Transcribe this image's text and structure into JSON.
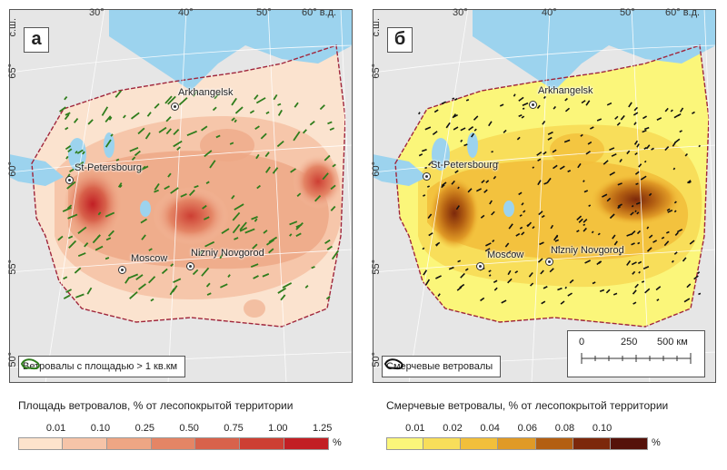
{
  "panels": [
    {
      "letter": "а",
      "lon_labels": [
        "30°",
        "40°",
        "50°",
        "60° в.д."
      ],
      "lat_labels": [
        "с.ш.",
        "65°",
        "60°",
        "55°",
        "50°"
      ],
      "cities": [
        "Arkhangelsk",
        "St-Petersbourg",
        "Moscow",
        "Nizniy Novgorod"
      ],
      "legend_text": "Ветровалы с площадью > 1 кв.км",
      "colors": {
        "base": "#fbe3cf",
        "water": "#9cd3ee",
        "marks": "#2f7d1c",
        "outside": "#e6e6e6"
      }
    },
    {
      "letter": "б",
      "lon_labels": [
        "30°",
        "40°",
        "50°",
        "60° в.д."
      ],
      "lat_labels": [
        "с.ш.",
        "65°",
        "60°",
        "55°",
        "50°"
      ],
      "cities": [
        "Arkhangelsk",
        "St-Petersbourg",
        "Moscow",
        "Nizniy Novgorod"
      ],
      "legend_text": "Смерчевые ветровалы",
      "scalebar": {
        "labels": [
          "0",
          "250",
          "500 км"
        ]
      },
      "colors": {
        "base": "#fbf67a",
        "water": "#9cd3ee",
        "marks": "#111111",
        "outside": "#e6e6e6"
      }
    }
  ],
  "legend_a": {
    "title": "Площадь ветровалов, % от лесопокрытой территории",
    "ticks": [
      "0.01",
      "0.10",
      "0.25",
      "0.50",
      "0.75",
      "1.00",
      "1.25"
    ],
    "unit": "%",
    "colors": [
      "#fde3cc",
      "#f6c4a8",
      "#eea684",
      "#e48565",
      "#d8624b",
      "#cd3f33",
      "#c21f24"
    ]
  },
  "legend_b": {
    "title": "Смерчевые ветровалы, % от лесопокрытой территории",
    "ticks": [
      "0.01",
      "0.02",
      "0.04",
      "0.06",
      "0.08",
      "0.10"
    ],
    "unit": "%",
    "colors": [
      "#fbf67a",
      "#f8de5a",
      "#f2bf3b",
      "#e09a26",
      "#b35f12",
      "#7c280b",
      "#55120a"
    ]
  }
}
